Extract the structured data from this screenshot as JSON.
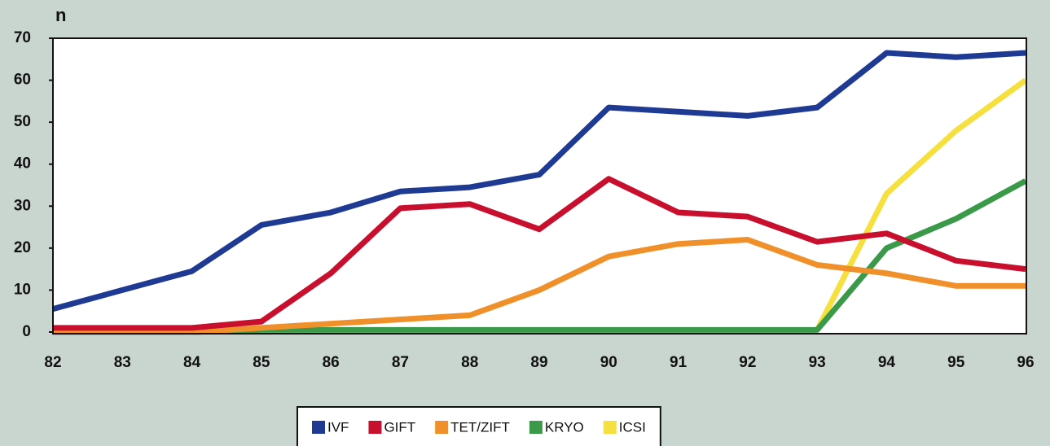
{
  "chart_data": {
    "type": "line",
    "y_label": "n",
    "categories": [
      "82",
      "83",
      "84",
      "85",
      "86",
      "87",
      "88",
      "89",
      "90",
      "91",
      "92",
      "93",
      "94",
      "95",
      "96"
    ],
    "ylim": [
      0,
      70
    ],
    "yticks": [
      0,
      10,
      20,
      30,
      40,
      50,
      60,
      70
    ],
    "grid": false,
    "legend": "bottom",
    "series": [
      {
        "name": "IVF",
        "color": "#1f3a93",
        "values": [
          5.5,
          10,
          14.5,
          25.5,
          28.5,
          33.5,
          34.5,
          37.5,
          53.5,
          52.5,
          51.5,
          53.5,
          66.5,
          65.5,
          66.5
        ]
      },
      {
        "name": "GIFT",
        "color": "#c8102e",
        "values": [
          1,
          1,
          1,
          2.5,
          14,
          29.5,
          30.5,
          24.5,
          36.5,
          28.5,
          27.5,
          21.5,
          23.5,
          17,
          15
        ]
      },
      {
        "name": "TET/ZIFT",
        "color": "#f0902a",
        "values": [
          0,
          0,
          0,
          1,
          2,
          3,
          4,
          10,
          18,
          21,
          22,
          16,
          14,
          11,
          11
        ]
      },
      {
        "name": "KRYO",
        "color": "#3a9a4a",
        "values": [
          0,
          0,
          0,
          0.5,
          0.5,
          0.5,
          0.5,
          0.5,
          0.5,
          0.5,
          0.5,
          0.5,
          20,
          27,
          36
        ]
      },
      {
        "name": "ICSI",
        "color": "#f5e040",
        "values": [
          null,
          null,
          null,
          null,
          null,
          null,
          null,
          null,
          null,
          null,
          null,
          0.5,
          33,
          48,
          60
        ]
      }
    ]
  }
}
